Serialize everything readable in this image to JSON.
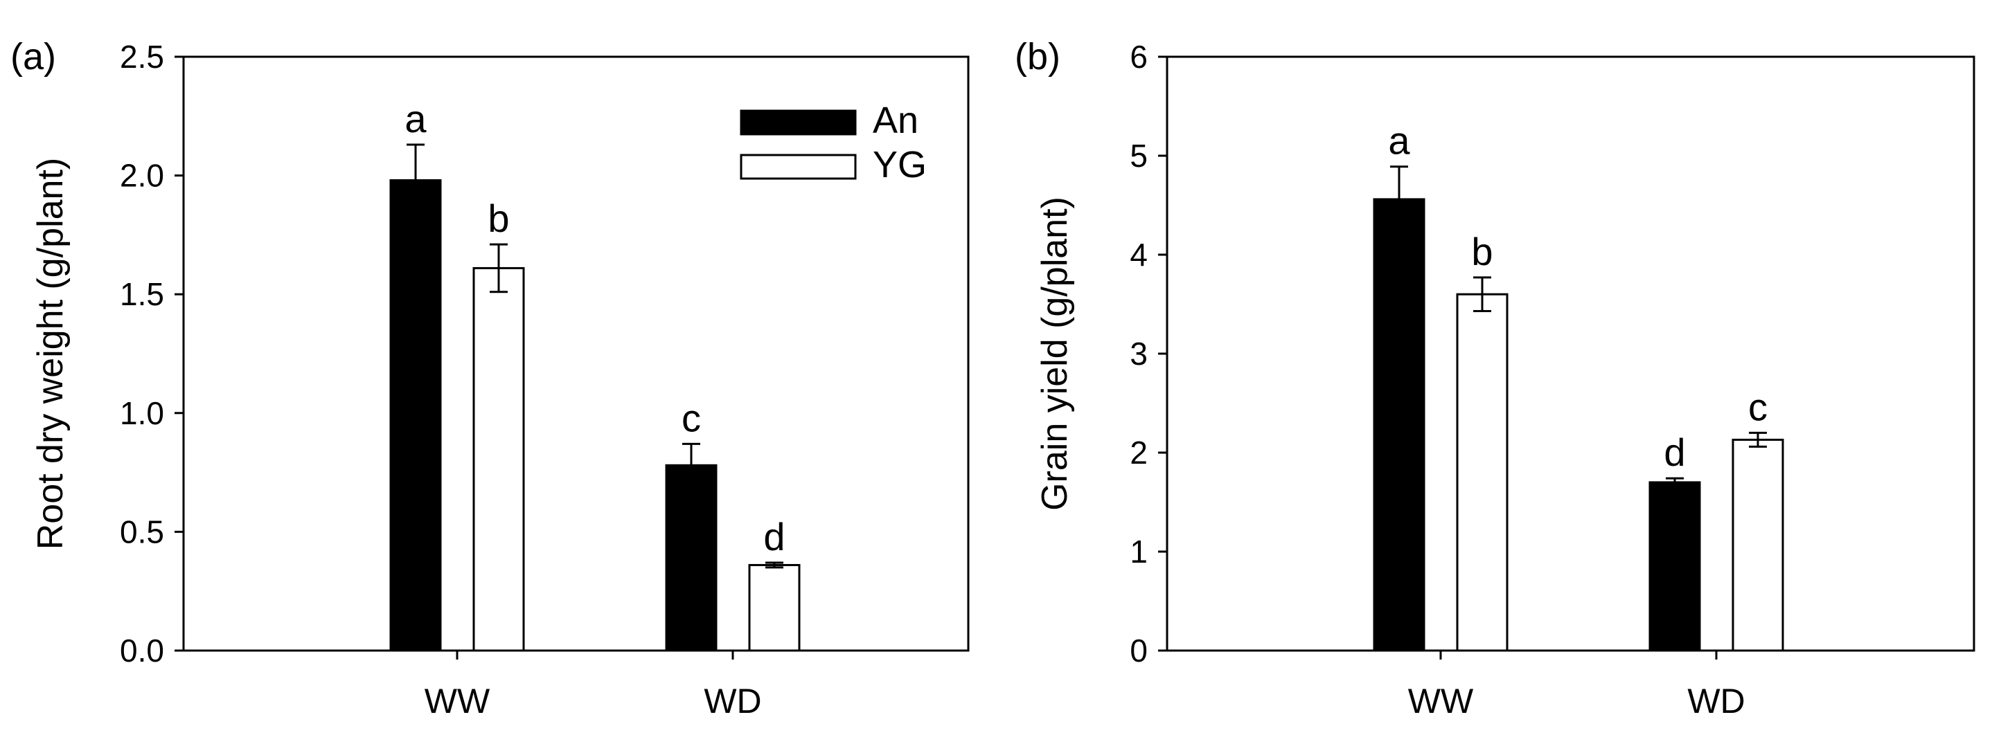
{
  "chart_data": [
    {
      "type": "bar",
      "panel_label": "(a)",
      "categories": [
        "WW",
        "WD"
      ],
      "ylabel": "Root dry weight (g/plant)",
      "xlabel": "",
      "ylim": [
        0,
        2.5
      ],
      "yticks": [
        "0.0",
        "0.5",
        "1.0",
        "1.5",
        "2.0",
        "2.5"
      ],
      "ytick_values": [
        0,
        0.5,
        1.0,
        1.5,
        2.0,
        2.5
      ],
      "legend": {
        "placement": "top-right",
        "entries": [
          "An",
          "YG"
        ]
      },
      "grid": false,
      "series": [
        {
          "name": "An",
          "color": "#000000",
          "values": [
            1.98,
            0.78
          ],
          "errors": [
            0.15,
            0.09
          ],
          "letters": [
            "a",
            "c"
          ]
        },
        {
          "name": "YG",
          "color": "#ffffff",
          "values": [
            1.61,
            0.36
          ],
          "errors": [
            0.1,
            0.01
          ],
          "letters": [
            "b",
            "d"
          ]
        }
      ]
    },
    {
      "type": "bar",
      "panel_label": "(b)",
      "categories": [
        "WW",
        "WD"
      ],
      "ylabel": "Grain yield (g/plant)",
      "xlabel": "",
      "ylim": [
        0,
        6
      ],
      "yticks": [
        "0",
        "1",
        "2",
        "3",
        "4",
        "5",
        "6"
      ],
      "ytick_values": [
        0,
        1,
        2,
        3,
        4,
        5,
        6
      ],
      "grid": false,
      "series": [
        {
          "name": "An",
          "color": "#000000",
          "values": [
            4.56,
            1.7
          ],
          "errors": [
            0.33,
            0.04
          ],
          "letters": [
            "a",
            "d"
          ]
        },
        {
          "name": "YG",
          "color": "#ffffff",
          "values": [
            3.6,
            2.13
          ],
          "errors": [
            0.17,
            0.07
          ],
          "letters": [
            "b",
            "c"
          ]
        }
      ]
    }
  ]
}
